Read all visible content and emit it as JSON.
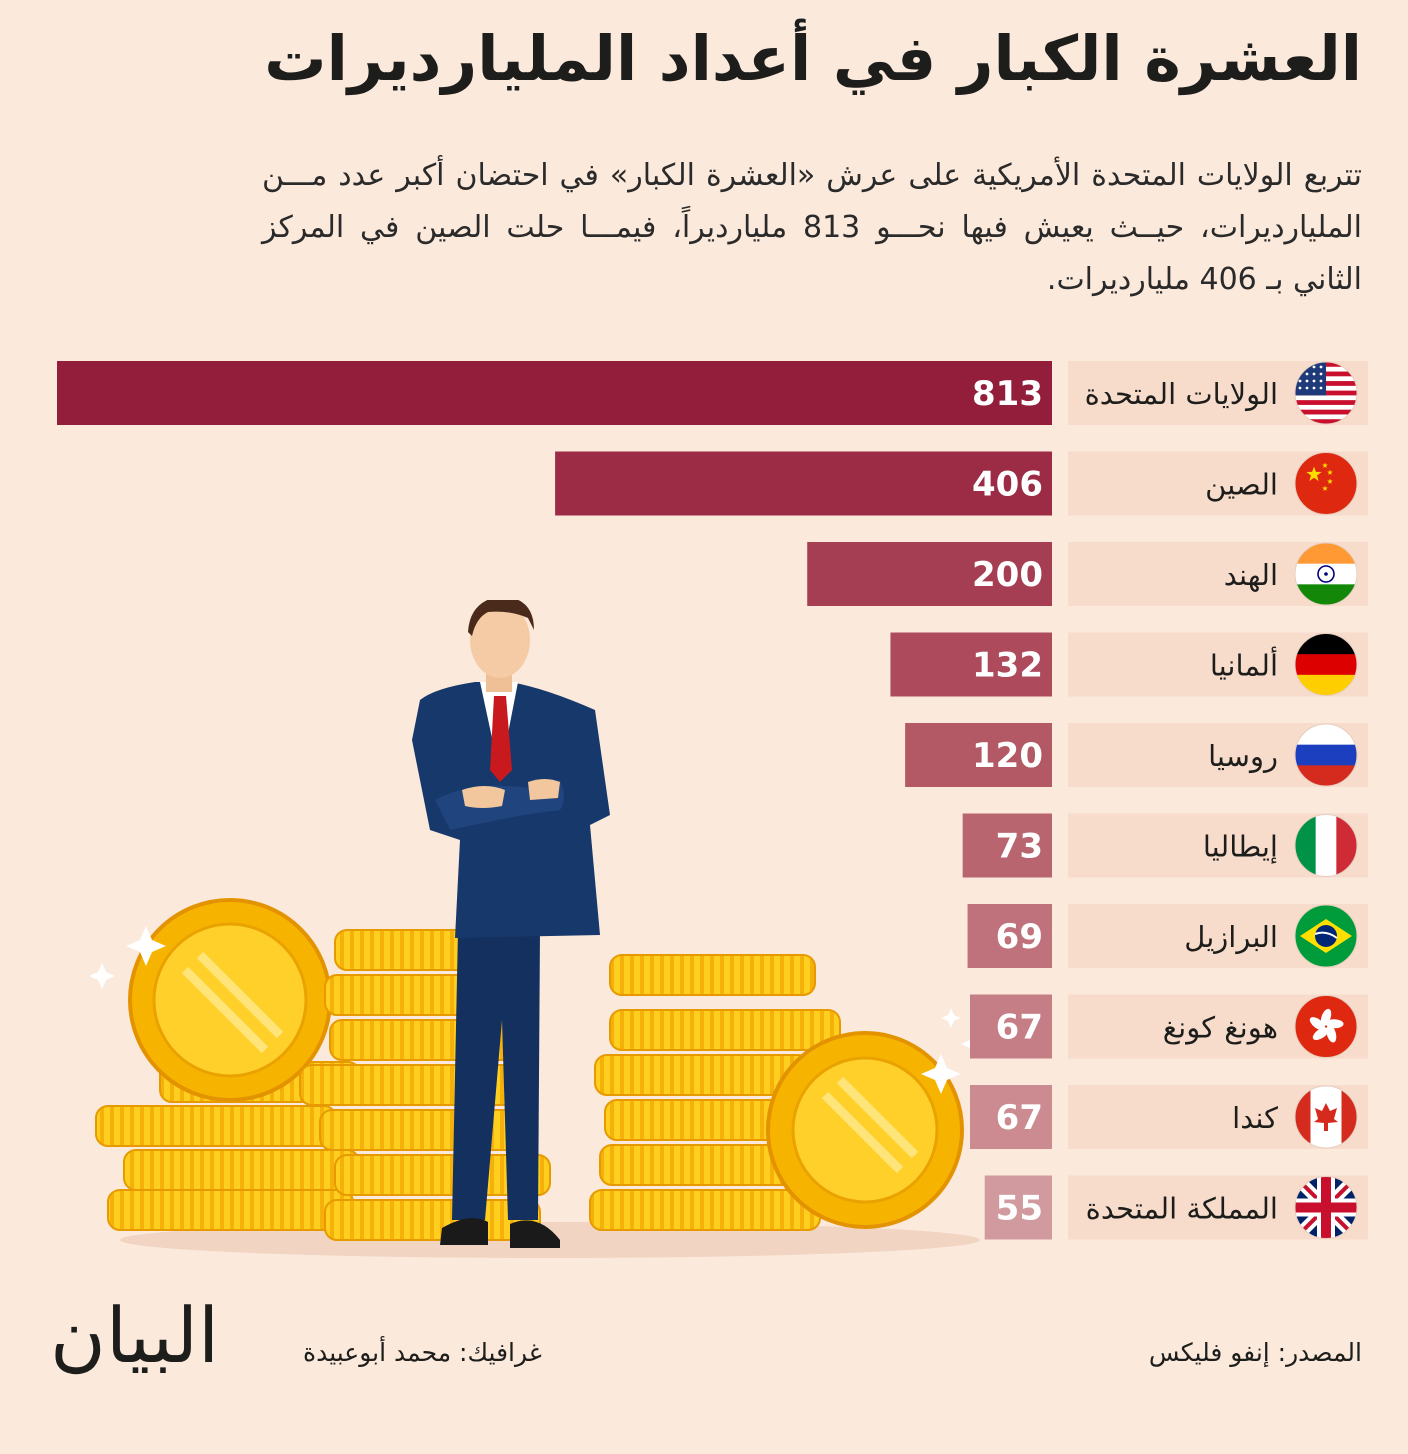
{
  "header": {
    "title": "العشرة الكبار في أعداد المليارديرات",
    "subtitle": "تتربع الولايات المتحدة الأمريكية على عرش «العشرة الكبار» في احتضان أكبر عدد مـــن المليارديرات، حيــث يعيش فيها نحـــو 813 مليارديراً، فيمـــا حلت الصين في المركز الثاني بـ 406 مليارديرات."
  },
  "chart_data": {
    "type": "bar",
    "orientation": "horizontal",
    "title": "",
    "xlabel": "",
    "ylabel": "",
    "xlim": [
      0,
      813
    ],
    "grid": false,
    "categories": [
      "الولايات المتحدة",
      "الصين",
      "الهند",
      "ألمانيا",
      "روسيا",
      "إيطاليا",
      "البرازيل",
      "هونغ كونغ",
      "كندا",
      "المملكة المتحدة"
    ],
    "values": [
      813,
      406,
      200,
      132,
      120,
      73,
      69,
      67,
      67,
      55
    ],
    "flags": [
      "us-flag-icon",
      "china-flag-icon",
      "india-flag-icon",
      "germany-flag-icon",
      "russia-flag-icon",
      "italy-flag-icon",
      "brazil-flag-icon",
      "hong-kong-flag-icon",
      "canada-flag-icon",
      "uk-flag-icon"
    ],
    "bar_colors": [
      "#931e3c",
      "#9c2c45",
      "#a53e52",
      "#ad4b5c",
      "#b35865",
      "#b96570",
      "#bf727b",
      "#c57e85",
      "#cb8b91",
      "#d19a9f"
    ]
  },
  "footer": {
    "source": "المصدر: إنفو فليكس",
    "credit": "غرافيك: محمد أبوعبيدة",
    "logo": "البيان"
  },
  "illustration": {
    "icon": "businessman-with-gold-coins-illustration"
  }
}
